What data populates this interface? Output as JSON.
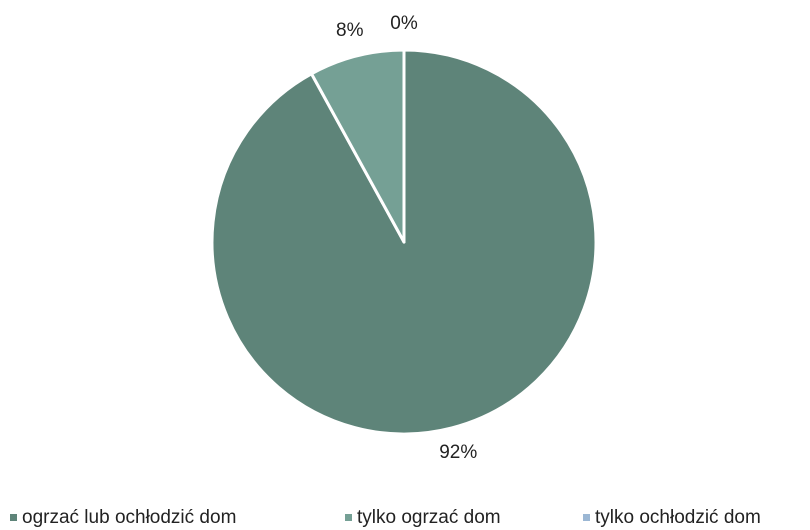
{
  "chart_data": {
    "type": "pie",
    "categories": [
      "ogrzać lub ochłodzić dom",
      "tylko ogrzać dom",
      "tylko ochłodzić dom"
    ],
    "values": [
      92,
      8,
      0
    ],
    "value_labels": [
      "92%",
      "8%",
      "0%"
    ],
    "colors": [
      "#5e8479",
      "#75a095",
      "#9bb7d4"
    ],
    "legend": "bottom"
  }
}
